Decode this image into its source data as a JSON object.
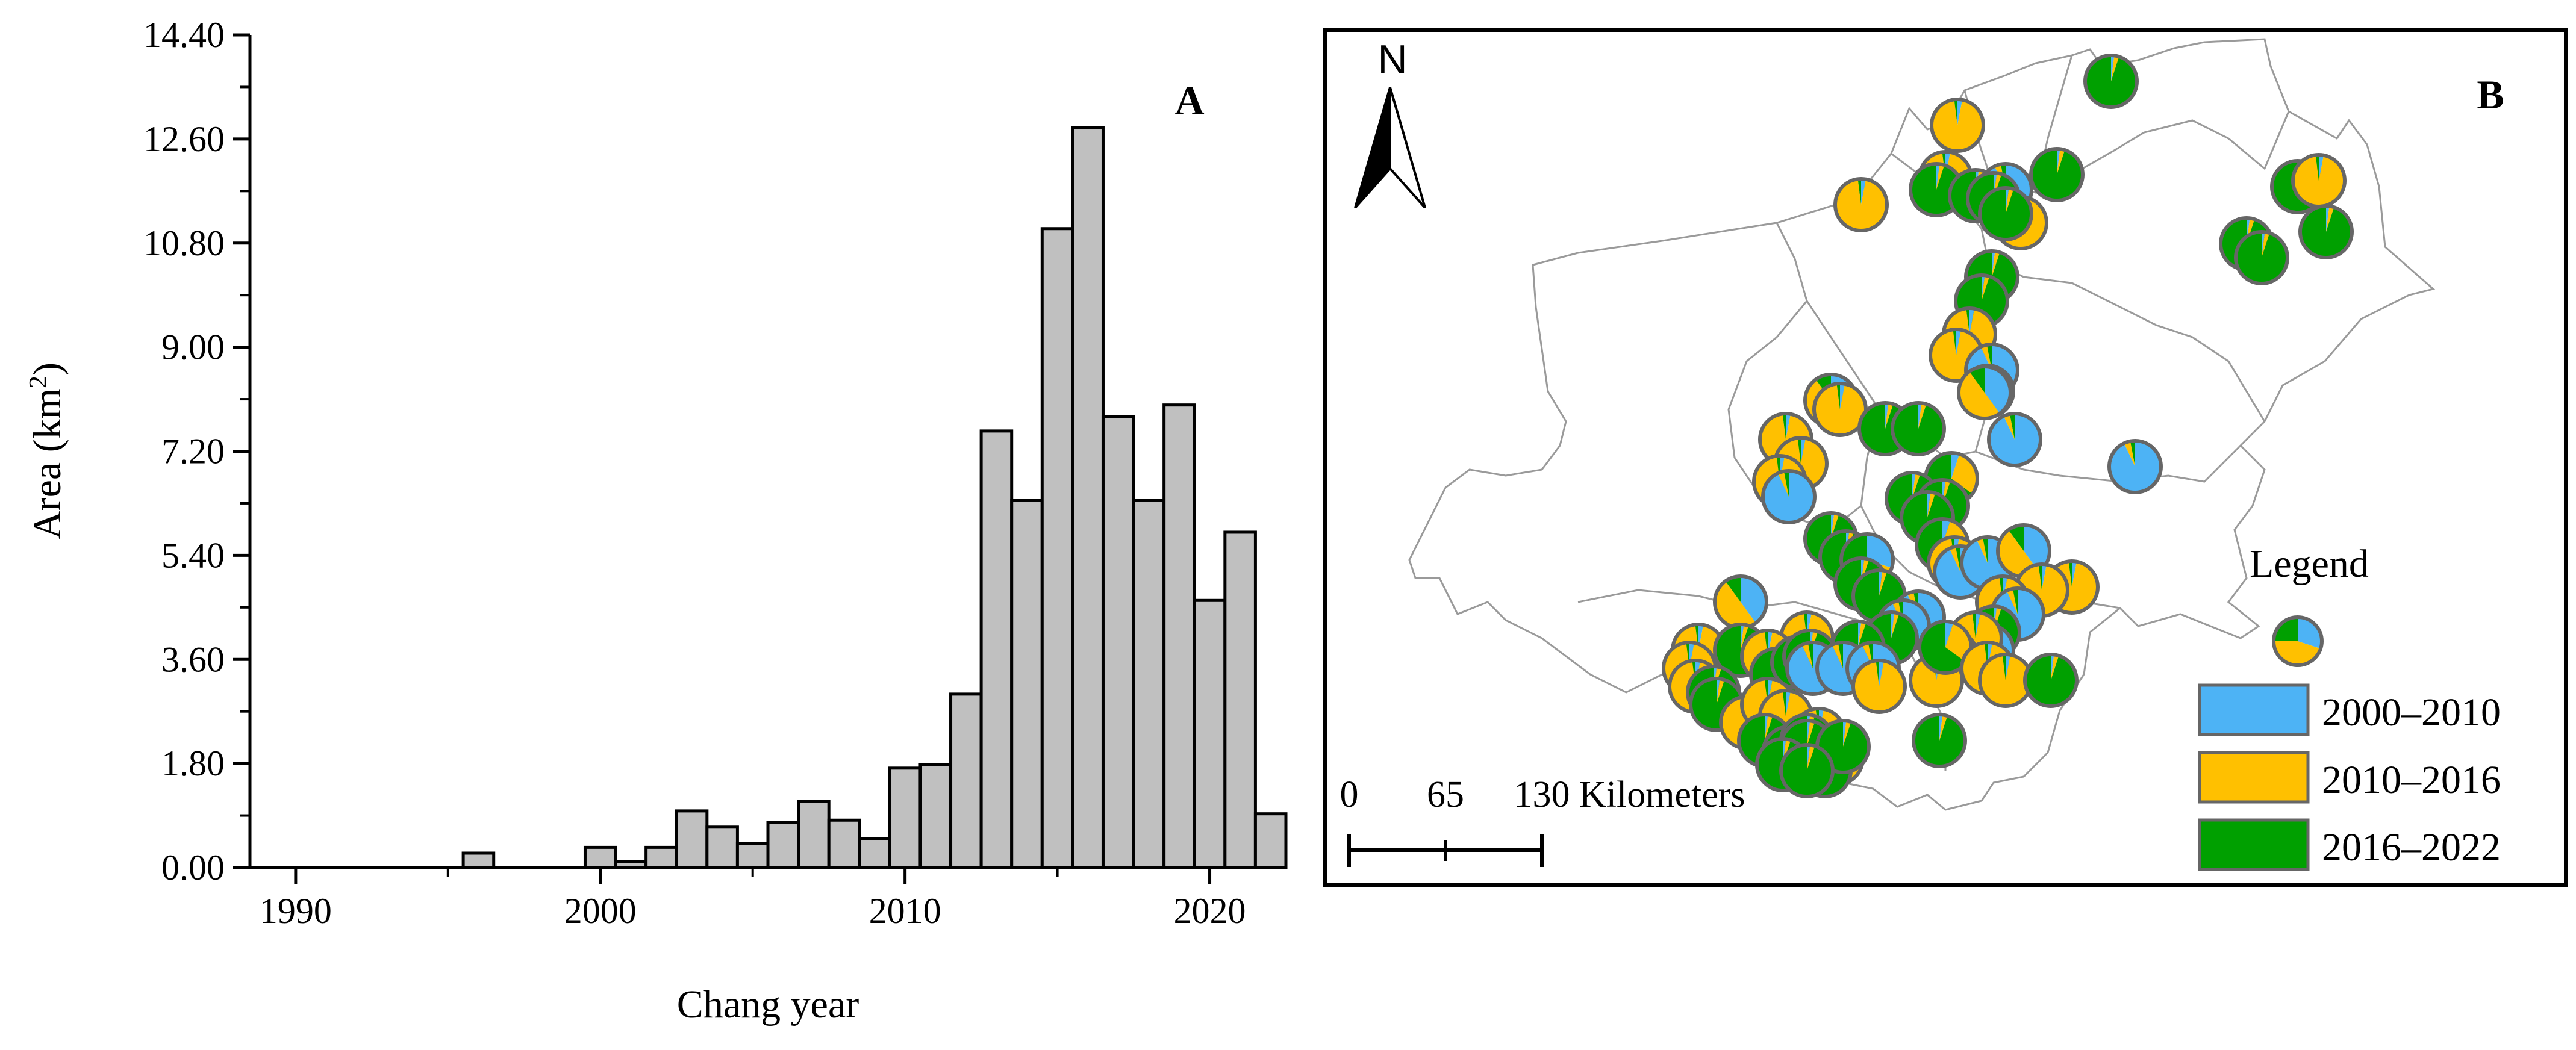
{
  "colors": {
    "bar_fill": "#c0c0c0",
    "blue": "#4db3f5",
    "yellow": "#ffc000",
    "green": "#00a000",
    "pie_stroke": "#666666",
    "boundary": "#9a9a9a"
  },
  "chart_data": {
    "type": "bar",
    "panel_label": "A",
    "title": "",
    "xlabel": "Chang year",
    "ylabel_prefix": "Area (km",
    "ylabel_sup": "2",
    "ylabel_suffix": ")",
    "xlim": [
      1988.5,
      2022.5
    ],
    "ylim": [
      0,
      14.4
    ],
    "x_ticks": [
      {
        "value": 1990,
        "label": "1990"
      },
      {
        "value": 2000,
        "label": "2000"
      },
      {
        "value": 2010,
        "label": "2010"
      },
      {
        "value": 2020,
        "label": "2020"
      }
    ],
    "y_ticks": [
      {
        "value": 0,
        "label": "0.00"
      },
      {
        "value": 1.8,
        "label": "1.80"
      },
      {
        "value": 3.6,
        "label": "3.60"
      },
      {
        "value": 5.4,
        "label": "5.40"
      },
      {
        "value": 7.2,
        "label": "7.20"
      },
      {
        "value": 9.0,
        "label": "9.00"
      },
      {
        "value": 10.8,
        "label": "10.80"
      },
      {
        "value": 12.6,
        "label": "12.60"
      },
      {
        "value": 14.4,
        "label": "14.40"
      }
    ],
    "categories": [
      1996,
      2000,
      2001,
      2002,
      2003,
      2004,
      2005,
      2006,
      2007,
      2008,
      2009,
      2010,
      2011,
      2012,
      2013,
      2014,
      2015,
      2016,
      2017,
      2018,
      2019,
      2020,
      2021,
      2022
    ],
    "values": [
      0.25,
      0.35,
      0.1,
      0.35,
      0.98,
      0.7,
      0.42,
      0.78,
      1.15,
      0.82,
      0.5,
      1.72,
      1.78,
      3.0,
      7.55,
      6.35,
      11.05,
      12.8,
      7.8,
      6.35,
      8.0,
      4.62,
      5.8,
      0.93
    ]
  },
  "map": {
    "panel_label": "B",
    "north_label": "N",
    "legend_title": "Legend",
    "legend_items": [
      {
        "label": "2000–2010",
        "color": "#4db3f5"
      },
      {
        "label": "2010–2016",
        "color": "#ffc000"
      },
      {
        "label": "2016–2022",
        "color": "#00a000"
      }
    ],
    "scale_labels": [
      "0",
      "65",
      "130"
    ],
    "scale_unit": "Kilometers"
  }
}
